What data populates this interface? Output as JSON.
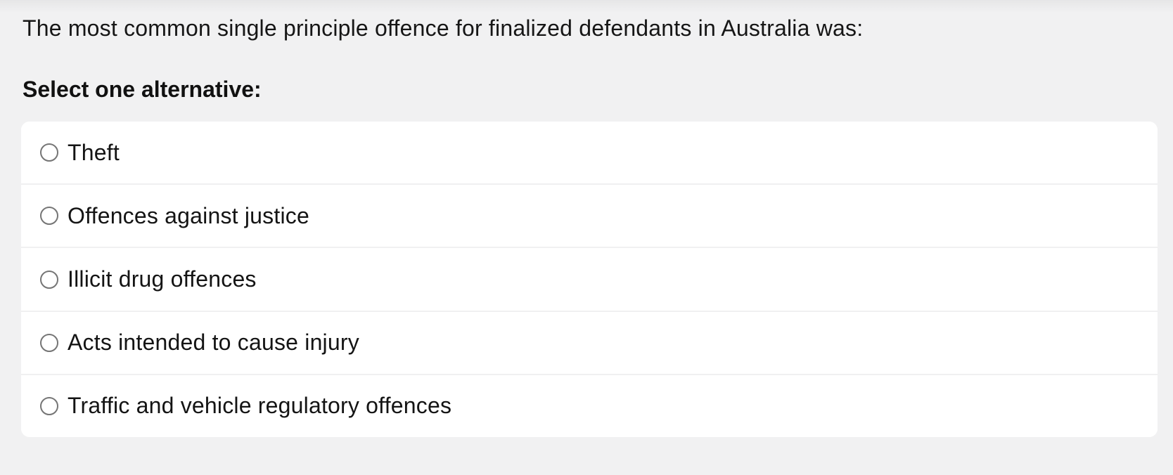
{
  "question": {
    "text": "The most common single principle offence for finalized defendants in Australia was:",
    "instruction": "Select one alternative:"
  },
  "options": [
    {
      "label": "Theft",
      "selected": false
    },
    {
      "label": "Offences against justice",
      "selected": false
    },
    {
      "label": "Illicit drug offences",
      "selected": false
    },
    {
      "label": "Acts intended to cause injury",
      "selected": false
    },
    {
      "label": "Traffic and vehicle regulatory offences",
      "selected": false
    }
  ],
  "colors": {
    "page_background": "#f1f1f2",
    "card_background": "#ffffff",
    "row_divider": "#f0f0f1",
    "radio_border": "#757575",
    "text": "#141414"
  }
}
